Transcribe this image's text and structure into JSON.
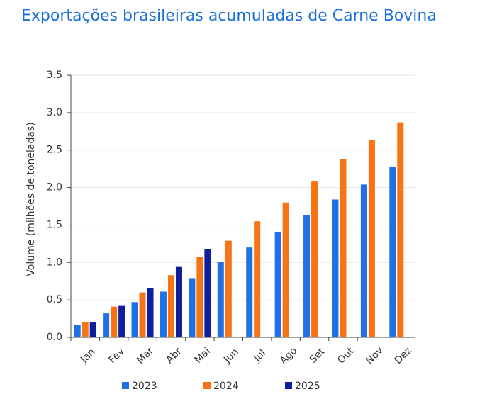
{
  "chart_data": {
    "type": "bar",
    "title": "Exportações brasileiras acumuladas de Carne Bovina",
    "y_label": "Volume (milhões de toneladas)",
    "categories": [
      "Jan",
      "Fev",
      "Mar",
      "Abr",
      "Mai",
      "Jun",
      "Jul",
      "Ago",
      "Set",
      "Out",
      "Nov",
      "Dez"
    ],
    "series": [
      {
        "name": "2023",
        "color": "#1f6fe5",
        "values": [
          0.17,
          0.32,
          0.47,
          0.61,
          0.79,
          1.01,
          1.2,
          1.41,
          1.63,
          1.84,
          2.04,
          2.28
        ]
      },
      {
        "name": "2024",
        "color": "#f77314",
        "values": [
          0.2,
          0.41,
          0.6,
          0.83,
          1.07,
          1.29,
          1.55,
          1.8,
          2.08,
          2.38,
          2.64,
          2.87
        ]
      },
      {
        "name": "2025",
        "color": "#0f1f9c",
        "values": [
          0.2,
          0.42,
          0.66,
          0.94,
          1.18,
          null,
          null,
          null,
          null,
          null,
          null,
          null
        ]
      }
    ],
    "ylim": [
      0,
      3.5
    ],
    "yticks": [
      {
        "value": 0,
        "label": "0.0"
      },
      0.5,
      {
        "value": 1,
        "label": "1.0"
      },
      1.5,
      {
        "value": 2,
        "label": "2.0"
      },
      2.5,
      {
        "value": 3,
        "label": "3.0"
      },
      3.5
    ],
    "grid": true
  }
}
